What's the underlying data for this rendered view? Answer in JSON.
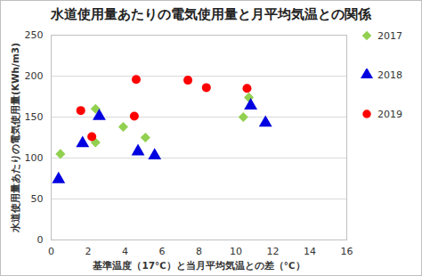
{
  "chart_data": {
    "type": "scatter",
    "title": "水道使用量あたりの電気使用量と月平均気温との関係",
    "x_label": "基準温度（17℃）と当月平均気温との差（℃）",
    "y_label": "水道使用量あたりの電気使用量(KWh/m3)",
    "xlim": [
      0,
      16
    ],
    "xticks": [
      0,
      2,
      4,
      6,
      8,
      10,
      12,
      14,
      16
    ],
    "ylim": [
      0,
      250
    ],
    "yticks": [
      0,
      50,
      100,
      150,
      200,
      250
    ],
    "grid": true,
    "legend": "right",
    "series": [
      {
        "name": "2017",
        "color": "#92d050",
        "marker": "diamond",
        "x": [
          0.5,
          2.4,
          2.4,
          3.9,
          5.1,
          10.4,
          10.7
        ],
        "values": [
          105,
          160,
          119,
          138,
          125,
          150,
          174
        ]
      },
      {
        "name": "2018",
        "color": "#0000e0",
        "marker": "triangle",
        "x": [
          0.4,
          1.7,
          2.6,
          4.7,
          5.6,
          10.8,
          11.6
        ],
        "values": [
          74,
          118,
          151,
          108,
          103,
          164,
          143
        ]
      },
      {
        "name": "2019",
        "color": "#ff0000",
        "marker": "circle",
        "x": [
          1.6,
          2.2,
          4.5,
          4.6,
          7.4,
          8.4,
          10.6
        ],
        "values": [
          158,
          126,
          151,
          196,
          195,
          186,
          185
        ]
      }
    ]
  }
}
